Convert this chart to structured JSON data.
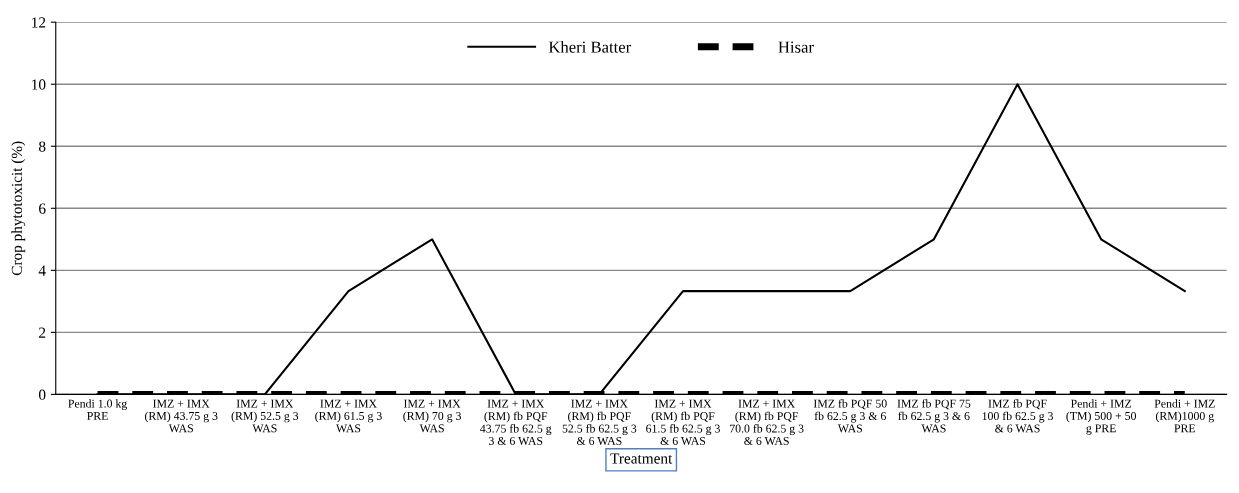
{
  "chart_data": {
    "type": "line",
    "xlabel": "Treatment",
    "ylabel": "Crop phytotoxicit (%)",
    "categories": [
      "Pendi 1.0 kg\nPRE",
      "IMZ + IMX\n(RM) 43.75 g 3\nWAS",
      "IMZ + IMX\n(RM) 52.5 g 3\nWAS",
      "IMZ + IMX\n(RM) 61.5 g 3\nWAS",
      "IMZ + IMX\n(RM) 70 g 3\nWAS",
      "IMZ + IMX\n(RM) fb PQF\n43.75 fb 62.5 g\n3 & 6 WAS",
      "IMZ + IMX\n(RM) fb PQF\n52.5 fb 62.5 g 3\n& 6 WAS",
      "IMZ + IMX\n(RM) fb PQF\n61.5 fb 62.5 g 3\n& 6 WAS",
      "IMZ + IMX\n(RM) fb PQF\n70.0 fb 62.5 g 3\n& 6 WAS",
      "IMZ fb PQF 50\nfb 62.5 g 3 & 6\nWAS",
      "IMZ fb PQF 75\nfb 62.5 g 3 & 6\nWAS",
      "IMZ fb PQF\n100 fb 62.5 g 3\n& 6 WAS",
      "Pendi + IMZ\n(TM) 500 + 50\ng PRE",
      "Pendi + IMZ\n(RM)1000 g\nPRE"
    ],
    "series": [
      {
        "name": "Kheri Batter",
        "color": "#000000",
        "line_style": "solid",
        "values": [
          0,
          0,
          0,
          3.33,
          5,
          0,
          0,
          3.33,
          3.33,
          3.33,
          5,
          10,
          5,
          3.33
        ]
      },
      {
        "name": "Hisar",
        "color": "#000000",
        "line_style": "dashed",
        "values": [
          0,
          0,
          0,
          0,
          0,
          0,
          0,
          0,
          0,
          0,
          0,
          0,
          0,
          0
        ]
      }
    ],
    "ylim": [
      0,
      12
    ],
    "yticks": [
      0,
      2,
      4,
      6,
      8,
      10,
      12
    ],
    "grid": "y",
    "legend": "top",
    "marker": "none"
  }
}
